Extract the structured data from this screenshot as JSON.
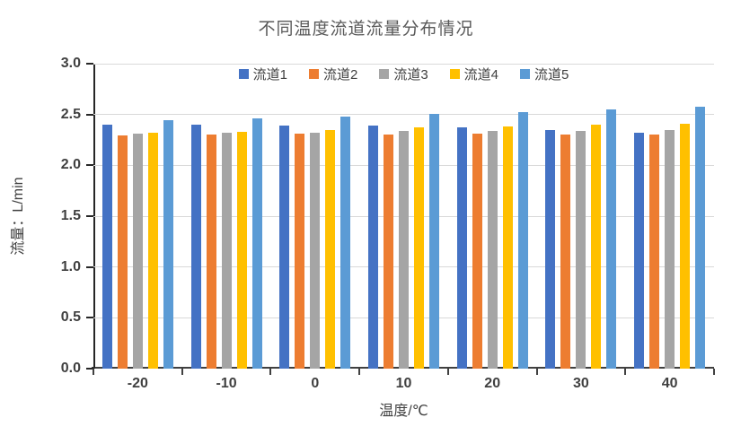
{
  "chart_data": {
    "type": "bar",
    "title": "不同温度流道流量分布情况",
    "xlabel": "温度/℃",
    "ylabel": "流量：L/min",
    "categories": [
      "-20",
      "-10",
      "0",
      "10",
      "20",
      "30",
      "40"
    ],
    "series": [
      {
        "name": "流道1",
        "color": "#4472C4",
        "values": [
          2.4,
          2.4,
          2.39,
          2.39,
          2.37,
          2.35,
          2.32
        ]
      },
      {
        "name": "流道2",
        "color": "#ED7D31",
        "values": [
          2.29,
          2.3,
          2.31,
          2.3,
          2.31,
          2.3,
          2.3
        ]
      },
      {
        "name": "流道3",
        "color": "#A5A5A5",
        "values": [
          2.31,
          2.32,
          2.32,
          2.34,
          2.34,
          2.34,
          2.35
        ]
      },
      {
        "name": "流道4",
        "color": "#FFC000",
        "values": [
          2.32,
          2.33,
          2.35,
          2.37,
          2.38,
          2.4,
          2.41
        ]
      },
      {
        "name": "流道5",
        "color": "#5B9BD5",
        "values": [
          2.44,
          2.46,
          2.48,
          2.51,
          2.52,
          2.55,
          2.58
        ]
      }
    ],
    "ylim": [
      0.0,
      3.0
    ],
    "ytick_step": 0.5,
    "ytick_labels": [
      "0.0",
      "0.5",
      "1.0",
      "1.5",
      "2.0",
      "2.5",
      "3.0"
    ],
    "grid": true,
    "legend_position": "top",
    "grid_color": "#D9D9D9",
    "axis_color": "#262626",
    "label_color": "#404040",
    "title_color": "#595959",
    "background_color": "#FFFFFF"
  }
}
